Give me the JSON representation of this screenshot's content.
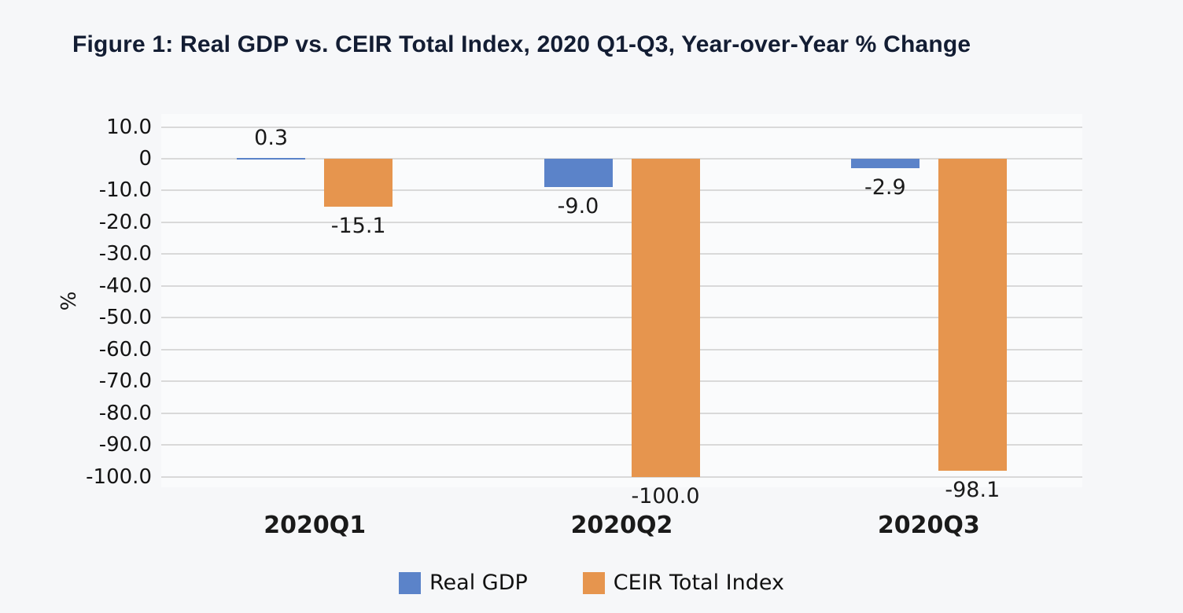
{
  "figure_title": "Figure 1: Real GDP vs. CEIR Total Index, 2020 Q1-Q3, Year-over-Year % Change",
  "colors": {
    "page_background": "#f6f7f9",
    "plot_background": "#fafbfc",
    "gridline": "#d9d9d9",
    "title_text": "#131d33",
    "label_text": "#1a1a1a",
    "real_gdp_blue": "#5b83c9",
    "ceir_orange": "#e6954e"
  },
  "chart_data": {
    "type": "bar",
    "title": "Figure 1: Real GDP vs. CEIR Total Index, 2020 Q1-Q3, Year-over-Year % Change",
    "categories": [
      "2020Q1",
      "2020Q2",
      "2020Q3"
    ],
    "series": [
      {
        "name": "Real GDP",
        "color": "#5b83c9",
        "values": [
          0.3,
          -9.0,
          -2.9
        ],
        "data_labels": [
          "0.3",
          "-9.0",
          "-2.9"
        ]
      },
      {
        "name": "CEIR Total Index",
        "color": "#e6954e",
        "values": [
          -15.1,
          -100.0,
          -98.1
        ],
        "data_labels": [
          "-15.1",
          "-100.0",
          "-98.1"
        ]
      }
    ],
    "xlabel": "",
    "ylabel": "%",
    "ylim": [
      -100.0,
      10.0
    ],
    "yticks": [
      10,
      0,
      -10,
      -20,
      -30,
      -40,
      -50,
      -60,
      -70,
      -80,
      -90,
      -100
    ],
    "ytick_labels": [
      "10.0",
      "0",
      "-10.0",
      "-20.0",
      "-30.0",
      "-40.0",
      "-50.0",
      "-60.0",
      "-70.0",
      "-80.0",
      "-90.0",
      "-100.0"
    ],
    "grid": true,
    "legend_position": "bottom"
  }
}
